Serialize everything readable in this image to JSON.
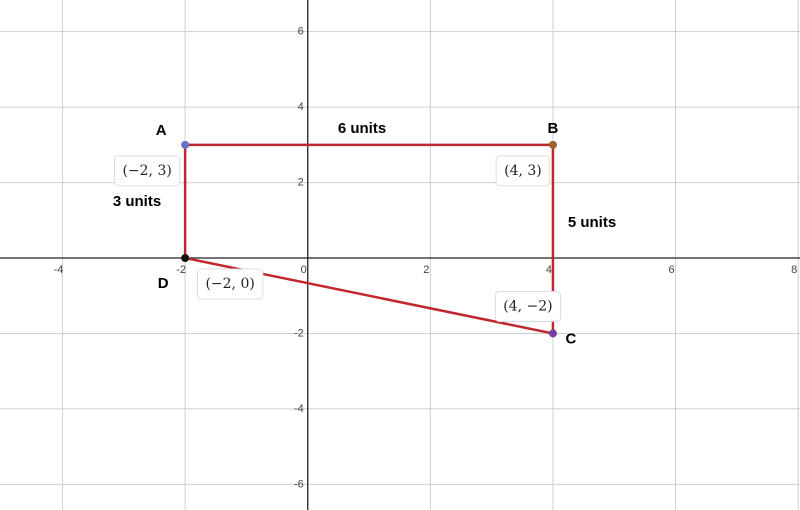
{
  "chart_data": {
    "type": "polygon",
    "x": [
      -2,
      4,
      4,
      -2
    ],
    "y": [
      3,
      3,
      -2,
      0
    ],
    "point_names": [
      "A",
      "B",
      "C",
      "D"
    ],
    "point_labels": [
      "(−2, 3)",
      "(4, 3)",
      "(4, −2)",
      "(−2, 0)"
    ],
    "point_colors": [
      "#6a6fc4",
      "#a0622a",
      "#7a3ea0",
      "#111111"
    ],
    "color": "#c0282d",
    "annotations": [
      "6 units",
      "5 units",
      "3 units"
    ],
    "xlim": [
      -5.02,
      8.03
    ],
    "ylim": [
      -6.68,
      6.84
    ],
    "xticks": [
      -4,
      -2,
      0,
      2,
      4,
      6,
      8
    ],
    "yticks": [
      -6,
      -4,
      -2,
      2,
      4,
      6
    ],
    "grid": true
  }
}
